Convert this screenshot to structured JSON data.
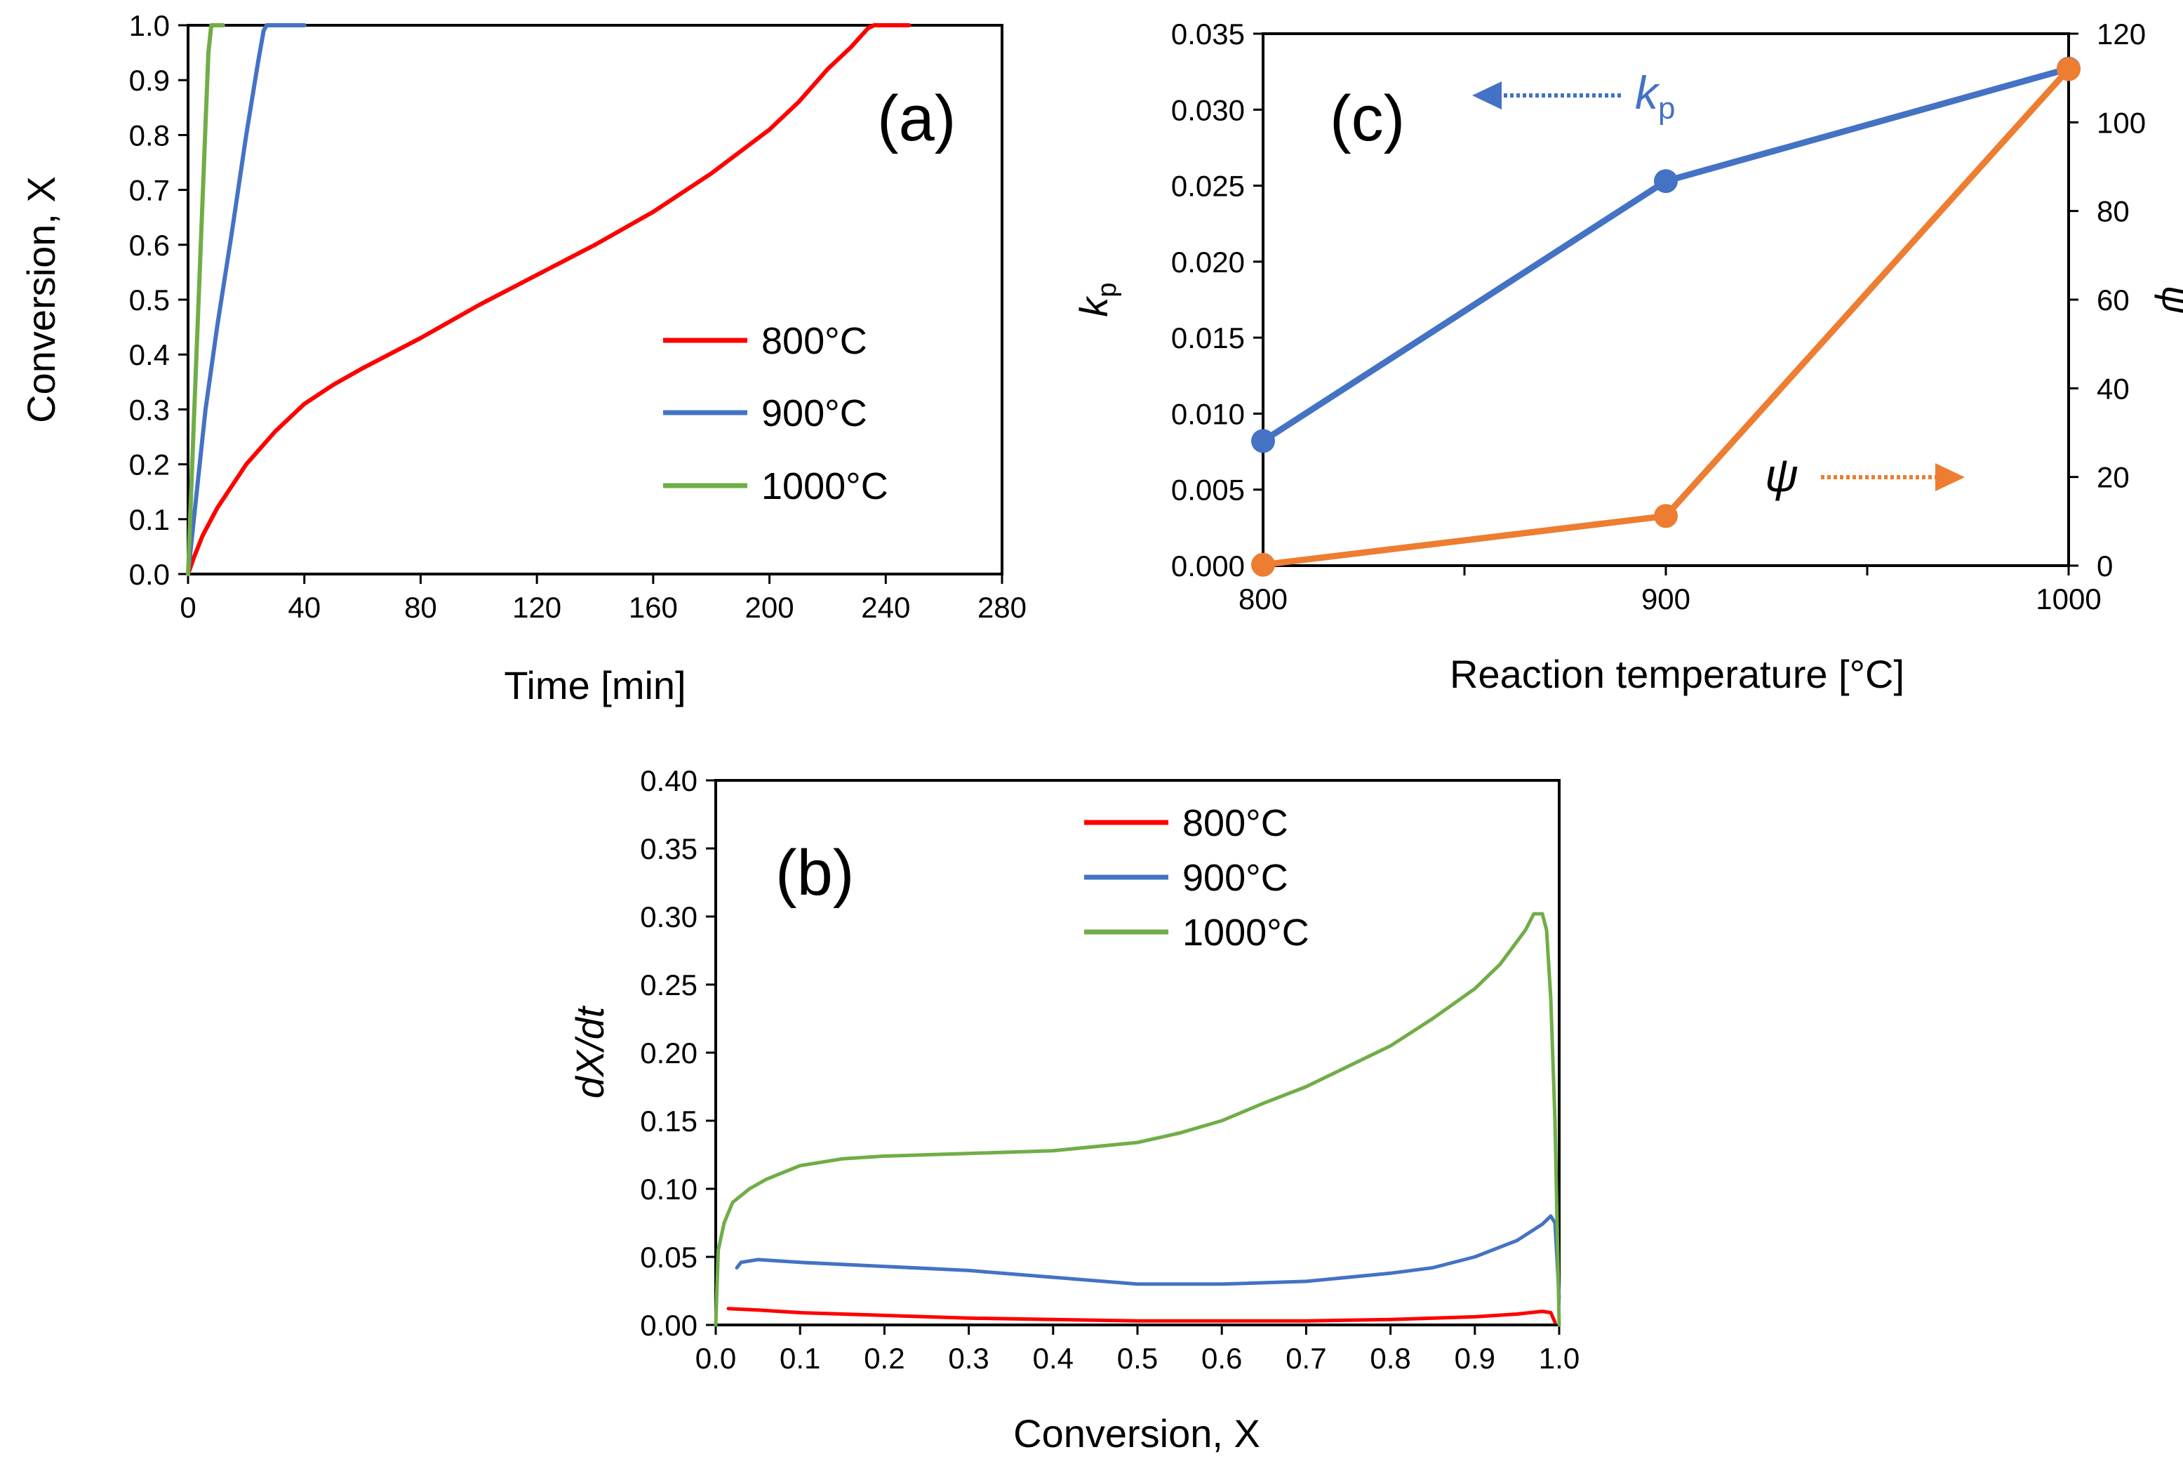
{
  "colors": {
    "red": "#ff0000",
    "blue": "#4472c4",
    "green": "#70ad47",
    "orange": "#ed7d31",
    "axis": "#000000"
  },
  "chart_data": [
    {
      "id": "a",
      "panel_label": "(a)",
      "type": "line",
      "xlabel": "Time [min]",
      "ylabel": "Conversion, X",
      "xlim": [
        0,
        280
      ],
      "ylim": [
        0,
        1.0
      ],
      "xticks": [
        "0",
        "40",
        "80",
        "120",
        "160",
        "200",
        "240",
        "280"
      ],
      "yticks": [
        "0.0",
        "0.1",
        "0.2",
        "0.3",
        "0.4",
        "0.5",
        "0.6",
        "0.7",
        "0.8",
        "0.9",
        "1.0"
      ],
      "series": [
        {
          "name": "800°C",
          "color": "#ff0000",
          "x": [
            0,
            2,
            5,
            10,
            20,
            30,
            40,
            50,
            60,
            80,
            100,
            120,
            140,
            160,
            180,
            200,
            210,
            220,
            228,
            234,
            236,
            248
          ],
          "y": [
            0,
            0.03,
            0.07,
            0.12,
            0.2,
            0.26,
            0.31,
            0.345,
            0.375,
            0.43,
            0.49,
            0.545,
            0.6,
            0.66,
            0.73,
            0.81,
            0.86,
            0.92,
            0.96,
            0.995,
            1.0,
            1.0
          ]
        },
        {
          "name": "900°C",
          "color": "#4472c4",
          "x": [
            0,
            3,
            6,
            10,
            15,
            20,
            24,
            26,
            27,
            40
          ],
          "y": [
            0,
            0.15,
            0.3,
            0.45,
            0.62,
            0.8,
            0.93,
            0.99,
            1.0,
            1.0
          ]
        },
        {
          "name": "1000°C",
          "color": "#70ad47",
          "x": [
            0,
            2,
            4,
            6,
            7,
            8,
            12
          ],
          "y": [
            0,
            0.28,
            0.55,
            0.82,
            0.95,
            1.0,
            1.0
          ]
        }
      ]
    },
    {
      "id": "c",
      "panel_label": "(c)",
      "type": "line",
      "xlabel": "Reaction temperature [°C]",
      "ylabel": "k",
      "ylabel_sub": "p",
      "y2label": "ψ",
      "xlim": [
        800,
        1000
      ],
      "ylim": [
        0,
        0.035
      ],
      "y2lim": [
        0,
        120
      ],
      "xticks": [
        "800",
        "900",
        "1000"
      ],
      "yticks": [
        "0.000",
        "0.005",
        "0.010",
        "0.015",
        "0.020",
        "0.025",
        "0.030",
        "0.035"
      ],
      "y2ticks": [
        "0",
        "20",
        "40",
        "60",
        "80",
        "100",
        "120"
      ],
      "series": [
        {
          "name": "kp",
          "axis": "left",
          "color": "#4472c4",
          "x": [
            800,
            900,
            1000
          ],
          "y": [
            0.0082,
            0.0253,
            0.0327
          ]
        },
        {
          "name": "ψ",
          "axis": "right",
          "color": "#ed7d31",
          "x": [
            800,
            900,
            1000
          ],
          "y": [
            0.2,
            11.2,
            112.0
          ]
        }
      ],
      "annotations": [
        {
          "text": "k",
          "sub": "p",
          "arrow": "left",
          "color": "#4472c4"
        },
        {
          "text": "ψ",
          "arrow": "right",
          "color": "#ed7d31"
        }
      ]
    },
    {
      "id": "b",
      "panel_label": "(b)",
      "type": "line",
      "xlabel": "Conversion, X",
      "ylabel": "dX/dt",
      "xlim": [
        0,
        1.0
      ],
      "ylim": [
        0,
        0.4
      ],
      "xticks": [
        "0.0",
        "0.1",
        "0.2",
        "0.3",
        "0.4",
        "0.5",
        "0.6",
        "0.7",
        "0.8",
        "0.9",
        "1.0"
      ],
      "yticks": [
        "0.00",
        "0.05",
        "0.10",
        "0.15",
        "0.20",
        "0.25",
        "0.30",
        "0.35",
        "0.40"
      ],
      "series": [
        {
          "name": "800°C",
          "color": "#ff0000",
          "x": [
            0.015,
            0.05,
            0.1,
            0.2,
            0.3,
            0.4,
            0.5,
            0.6,
            0.7,
            0.8,
            0.9,
            0.95,
            0.98,
            0.99,
            0.995
          ],
          "y": [
            0.012,
            0.011,
            0.009,
            0.007,
            0.005,
            0.004,
            0.003,
            0.003,
            0.003,
            0.004,
            0.006,
            0.008,
            0.01,
            0.009,
            0.002
          ]
        },
        {
          "name": "900°C",
          "color": "#4472c4",
          "x": [
            0.025,
            0.03,
            0.05,
            0.1,
            0.2,
            0.3,
            0.4,
            0.5,
            0.6,
            0.7,
            0.8,
            0.85,
            0.9,
            0.95,
            0.98,
            0.99,
            0.995,
            1.0
          ],
          "y": [
            0.042,
            0.046,
            0.048,
            0.046,
            0.043,
            0.04,
            0.035,
            0.03,
            0.03,
            0.032,
            0.038,
            0.042,
            0.05,
            0.062,
            0.074,
            0.08,
            0.075,
            0.02
          ]
        },
        {
          "name": "1000°C",
          "color": "#70ad47",
          "x": [
            0.0,
            0.003,
            0.01,
            0.02,
            0.04,
            0.06,
            0.1,
            0.15,
            0.2,
            0.3,
            0.4,
            0.5,
            0.55,
            0.6,
            0.65,
            0.7,
            0.75,
            0.8,
            0.85,
            0.9,
            0.93,
            0.96,
            0.97,
            0.98,
            0.985,
            0.99,
            0.995,
            1.0
          ],
          "y": [
            0.0,
            0.055,
            0.075,
            0.09,
            0.1,
            0.107,
            0.117,
            0.122,
            0.124,
            0.126,
            0.128,
            0.134,
            0.141,
            0.15,
            0.163,
            0.175,
            0.19,
            0.205,
            0.225,
            0.247,
            0.265,
            0.29,
            0.302,
            0.302,
            0.29,
            0.24,
            0.15,
            0.0
          ]
        }
      ]
    }
  ]
}
